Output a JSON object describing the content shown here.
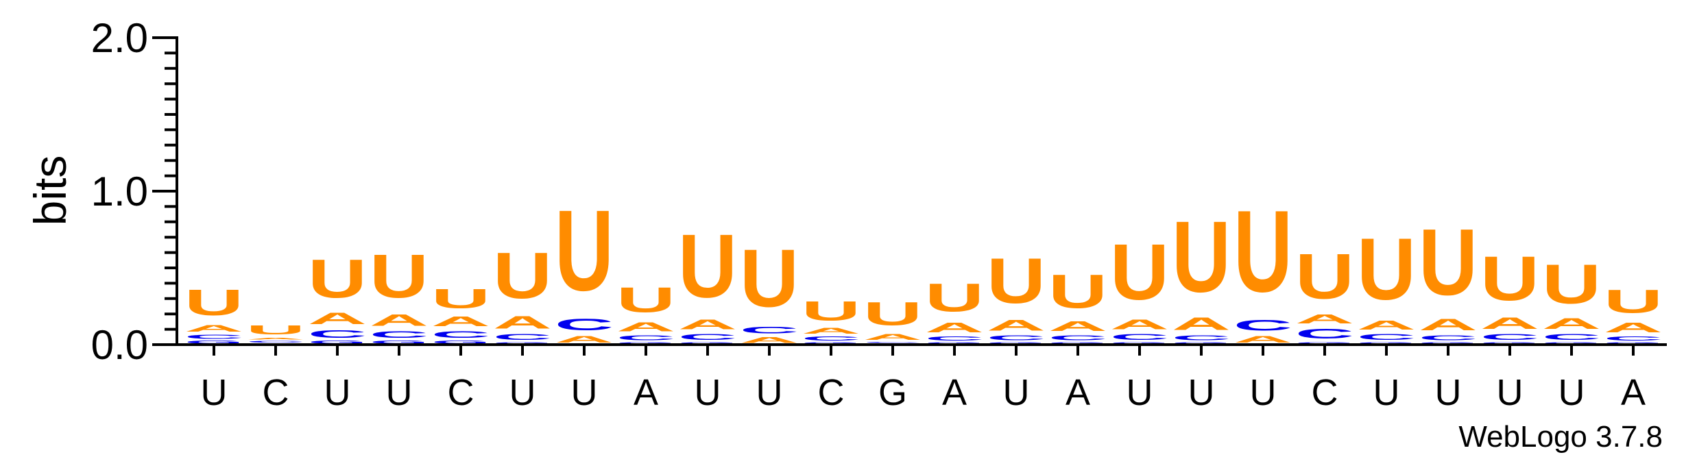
{
  "chart_data": {
    "type": "sequence-logo",
    "ylabel": "bits",
    "ylim": [
      0,
      2.0
    ],
    "yticks": [
      "0.0",
      "1.0",
      "2.0"
    ],
    "footer": "WebLogo 3.7.8",
    "xlabels": [
      "U",
      "C",
      "U",
      "U",
      "C",
      "U",
      "U",
      "A",
      "U",
      "U",
      "C",
      "G",
      "A",
      "U",
      "A",
      "U",
      "U",
      "U",
      "C",
      "U",
      "U",
      "U",
      "U",
      "A"
    ],
    "colors": {
      "U": "#ff8c00",
      "A": "#ff8c00",
      "C": "#0000ee",
      "G": "#0000ee"
    },
    "positions": [
      {
        "stack": [
          [
            "G",
            0.03
          ],
          [
            "C",
            0.04
          ],
          [
            "A",
            0.07
          ],
          [
            "U",
            0.27
          ]
        ]
      },
      {
        "stack": [
          [
            "G",
            0.01
          ],
          [
            "C",
            0.02
          ],
          [
            "A",
            0.02
          ],
          [
            "U",
            0.09
          ]
        ]
      },
      {
        "stack": [
          [
            "G",
            0.03
          ],
          [
            "C",
            0.08
          ],
          [
            "A",
            0.12
          ],
          [
            "U",
            0.4
          ]
        ]
      },
      {
        "stack": [
          [
            "G",
            0.03
          ],
          [
            "C",
            0.07
          ],
          [
            "A",
            0.12
          ],
          [
            "U",
            0.45
          ]
        ]
      },
      {
        "stack": [
          [
            "G",
            0.03
          ],
          [
            "C",
            0.07
          ],
          [
            "A",
            0.1
          ],
          [
            "U",
            0.2
          ]
        ]
      },
      {
        "stack": [
          [
            "G",
            0.02
          ],
          [
            "C",
            0.06
          ],
          [
            "A",
            0.13
          ],
          [
            "U",
            0.48
          ]
        ]
      },
      {
        "stack": [
          [
            "A",
            0.07
          ],
          [
            "C",
            0.12
          ],
          [
            "U",
            0.84
          ]
        ]
      },
      {
        "stack": [
          [
            "G",
            0.02
          ],
          [
            "C",
            0.05
          ],
          [
            "A",
            0.09
          ],
          [
            "U",
            0.26
          ]
        ]
      },
      {
        "stack": [
          [
            "G",
            0.02
          ],
          [
            "C",
            0.06
          ],
          [
            "A",
            0.1
          ],
          [
            "U",
            0.66
          ]
        ]
      },
      {
        "stack": [
          [
            "A",
            0.06
          ],
          [
            "C",
            0.07
          ],
          [
            "U",
            0.6
          ]
        ]
      },
      {
        "stack": [
          [
            "G",
            0.02
          ],
          [
            "C",
            0.04
          ],
          [
            "A",
            0.06
          ],
          [
            "U",
            0.2
          ]
        ]
      },
      {
        "stack": [
          [
            "G",
            0.01
          ],
          [
            "C",
            0.01
          ],
          [
            "A",
            0.06
          ],
          [
            "U",
            0.24
          ]
        ]
      },
      {
        "stack": [
          [
            "G",
            0.02
          ],
          [
            "C",
            0.04
          ],
          [
            "A",
            0.1
          ],
          [
            "U",
            0.29
          ]
        ]
      },
      {
        "stack": [
          [
            "G",
            0.02
          ],
          [
            "C",
            0.05
          ],
          [
            "A",
            0.11
          ],
          [
            "U",
            0.47
          ]
        ]
      },
      {
        "stack": [
          [
            "G",
            0.02
          ],
          [
            "C",
            0.05
          ],
          [
            "A",
            0.1
          ],
          [
            "U",
            0.35
          ]
        ]
      },
      {
        "stack": [
          [
            "G",
            0.02
          ],
          [
            "C",
            0.06
          ],
          [
            "A",
            0.1
          ],
          [
            "U",
            0.58
          ]
        ]
      },
      {
        "stack": [
          [
            "G",
            0.02
          ],
          [
            "C",
            0.05
          ],
          [
            "A",
            0.13
          ],
          [
            "U",
            0.74
          ]
        ]
      },
      {
        "stack": [
          [
            "A",
            0.07
          ],
          [
            "C",
            0.11
          ],
          [
            "U",
            0.85
          ]
        ]
      },
      {
        "stack": [
          [
            "G",
            0.02
          ],
          [
            "C",
            0.1
          ],
          [
            "A",
            0.09
          ],
          [
            "U",
            0.47
          ]
        ]
      },
      {
        "stack": [
          [
            "G",
            0.02
          ],
          [
            "C",
            0.06
          ],
          [
            "A",
            0.09
          ],
          [
            "U",
            0.64
          ]
        ]
      },
      {
        "stack": [
          [
            "G",
            0.02
          ],
          [
            "C",
            0.05
          ],
          [
            "A",
            0.12
          ],
          [
            "U",
            0.69
          ]
        ]
      },
      {
        "stack": [
          [
            "G",
            0.02
          ],
          [
            "C",
            0.06
          ],
          [
            "A",
            0.12
          ],
          [
            "U",
            0.46
          ]
        ]
      },
      {
        "stack": [
          [
            "G",
            0.02
          ],
          [
            "C",
            0.06
          ],
          [
            "A",
            0.11
          ],
          [
            "U",
            0.41
          ]
        ]
      },
      {
        "stack": [
          [
            "G",
            0.02
          ],
          [
            "C",
            0.04
          ],
          [
            "A",
            0.1
          ],
          [
            "U",
            0.24
          ]
        ]
      }
    ]
  }
}
